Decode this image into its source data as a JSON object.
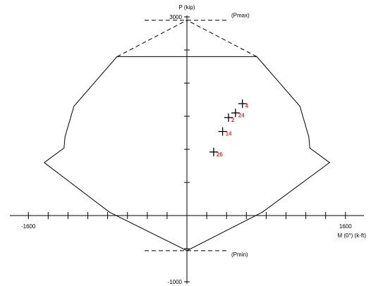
{
  "chart_data": {
    "type": "scatter",
    "title": "",
    "xlabel": "M (0°) (k-ft)",
    "ylabel": "P (kip)",
    "xlim": [
      -1600,
      1600
    ],
    "ylim": [
      -1000,
      3000
    ],
    "x_tick_labels": [
      "-1600",
      "1600"
    ],
    "y_tick_labels": [
      "3000",
      "-1000"
    ],
    "x_tick_step": 200,
    "y_tick_step": 500,
    "pmax": {
      "label": "(Pmax)",
      "value": 2950
    },
    "pmin": {
      "label": "(Pmin)",
      "value": -530
    },
    "envelope": {
      "name": "interaction-diagram",
      "points": [
        [
          -1440,
          800
        ],
        [
          -1240,
          1020
        ],
        [
          -1230,
          1190
        ],
        [
          -1140,
          1650
        ],
        [
          -705,
          2400
        ],
        [
          705,
          2400
        ],
        [
          1140,
          1650
        ],
        [
          1230,
          1190
        ],
        [
          1240,
          1020
        ],
        [
          1440,
          800
        ],
        [
          760,
          50
        ],
        [
          0,
          -530
        ],
        [
          -780,
          50
        ],
        [
          -1440,
          800
        ]
      ]
    },
    "cap_lines": [
      [
        [
          -705,
          2400
        ],
        [
          0,
          2950
        ]
      ],
      [
        [
          705,
          2400
        ],
        [
          0,
          2950
        ]
      ]
    ],
    "points": [
      {
        "label": "4",
        "x": 560,
        "y": 1690
      },
      {
        "label": "24",
        "x": 490,
        "y": 1550
      },
      {
        "label": "2",
        "x": 420,
        "y": 1480
      },
      {
        "label": "14",
        "x": 360,
        "y": 1270
      },
      {
        "label": "26",
        "x": 270,
        "y": 960
      }
    ],
    "grid": false,
    "legend": "none"
  }
}
